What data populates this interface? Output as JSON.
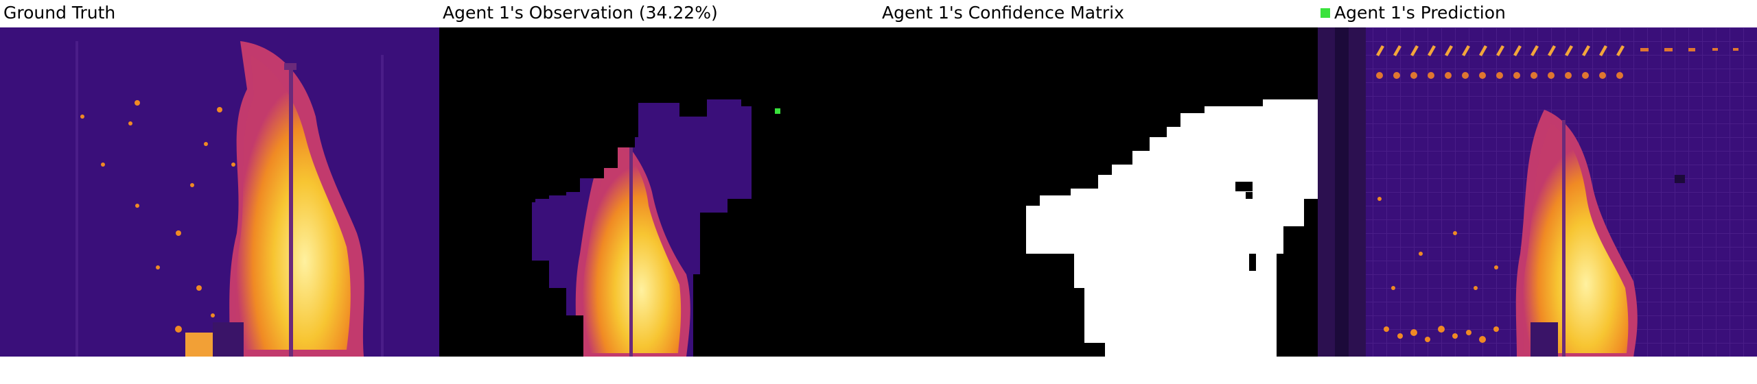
{
  "panels": {
    "ground_truth": {
      "title": "Ground Truth"
    },
    "observation": {
      "title": "Agent 1's Observation (34.22%)"
    },
    "confidence": {
      "title": "Agent 1's Confidence Matrix"
    },
    "prediction": {
      "title": "Agent 1's Prediction"
    }
  },
  "colors": {
    "background_purple": "#3a0f7a",
    "fire_yellow": "#f7c532",
    "hot_orange": "#f27a25",
    "mask_white": "#ffffff",
    "mask_black": "#000000",
    "agent_marker": "#39e23c"
  },
  "icons": {
    "agent_marker": "agent-marker-square-icon"
  }
}
